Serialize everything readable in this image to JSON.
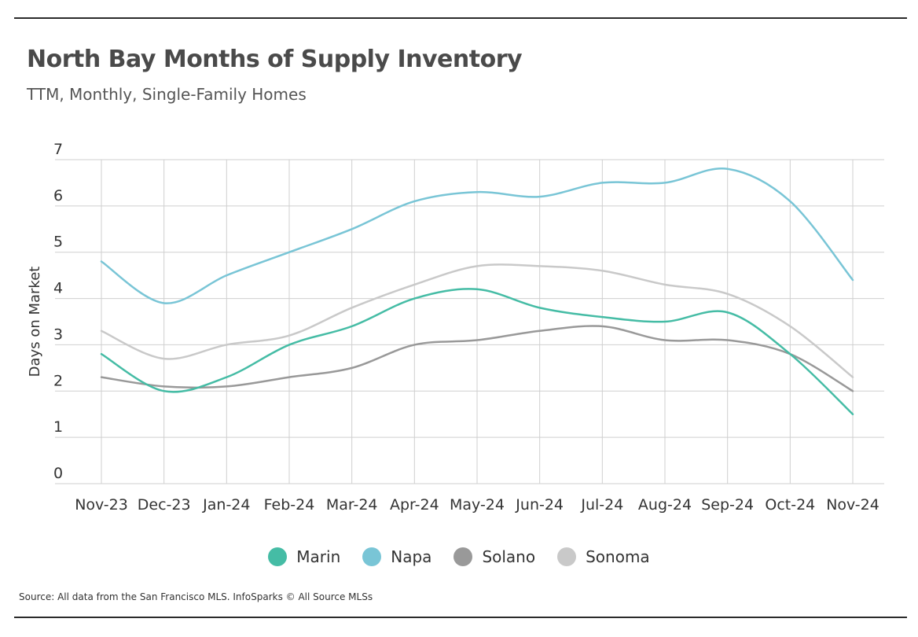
{
  "title": "North Bay Months of Supply Inventory",
  "subtitle": "TTM, Monthly, Single-Family Homes",
  "source": "Source:  All data from the San Francisco MLS. InfoSparks © All Source MLSs",
  "chart_data": {
    "type": "line",
    "title": "North Bay Months of Supply Inventory",
    "subtitle": "TTM, Monthly, Single-Family Homes",
    "xlabel": "",
    "ylabel": "Days on Market",
    "ylim": [
      0,
      7
    ],
    "yticks": [
      0,
      1,
      2,
      3,
      4,
      5,
      6,
      7
    ],
    "grid": true,
    "legend_position": "bottom",
    "categories": [
      "Nov-23",
      "Dec-23",
      "Jan-24",
      "Feb-24",
      "Mar-24",
      "Apr-24",
      "May-24",
      "Jun-24",
      "Jul-24",
      "Aug-24",
      "Sep-24",
      "Oct-24",
      "Nov-24"
    ],
    "series": [
      {
        "name": "Marin",
        "color": "#45bca5",
        "values": [
          2.8,
          2.0,
          2.3,
          3.0,
          3.4,
          4.0,
          4.2,
          3.8,
          3.6,
          3.5,
          3.7,
          2.8,
          1.5
        ]
      },
      {
        "name": "Napa",
        "color": "#79c5d6",
        "values": [
          4.8,
          3.9,
          4.5,
          5.0,
          5.5,
          6.1,
          6.3,
          6.2,
          6.5,
          6.5,
          6.8,
          6.1,
          4.4
        ]
      },
      {
        "name": "Solano",
        "color": "#999999",
        "values": [
          2.3,
          2.1,
          2.1,
          2.3,
          2.5,
          3.0,
          3.1,
          3.3,
          3.4,
          3.1,
          3.1,
          2.8,
          2.0
        ]
      },
      {
        "name": "Sonoma",
        "color": "#c9c9c9",
        "values": [
          3.3,
          2.7,
          3.0,
          3.2,
          3.8,
          4.3,
          4.7,
          4.7,
          4.6,
          4.3,
          4.1,
          3.4,
          2.3
        ]
      }
    ]
  }
}
